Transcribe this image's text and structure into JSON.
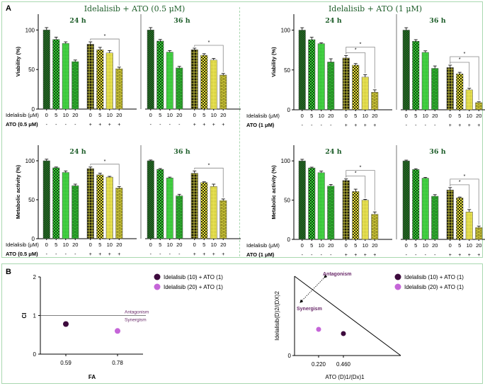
{
  "panel_a": {
    "letter": "A",
    "x_row_label": "Idelalisib (μM)",
    "doses": [
      "0",
      "5",
      "10",
      "20",
      "0",
      "5",
      "10",
      "20"
    ],
    "time_labels": [
      "24 h",
      "36 h"
    ],
    "significance_mark": "*"
  },
  "panel_b": {
    "letter": "B",
    "legend": [
      {
        "label": "Idelalisib (10) + ATO (1)",
        "color": "#3d0a3d"
      },
      {
        "label": "Idelalisib (20) + ATO (1)",
        "color": "#c565d8"
      }
    ]
  },
  "colors": {
    "dark_green": "#1f5f1f",
    "mid_green": "#2fb52f",
    "light_green": "#4ad64a",
    "bright_green": "#34c034",
    "dark_yellow": "#3a3a10",
    "yellow": "#e6e040",
    "title_green": "#1e5e2a",
    "purple_text": "#6a2a6a",
    "panel_border": "#a9d8b0"
  },
  "chart_data": [
    {
      "type": "bar",
      "id": "viability-ato05",
      "title": "Idelalisib + ATO (0.5 μM)",
      "ylabel": "Viability (%)",
      "ylim": [
        0,
        120
      ],
      "yticks": [
        0,
        50,
        100
      ],
      "ato_label": "ATO (0.5 μM)",
      "categories": [
        "0",
        "5",
        "10",
        "20",
        "0",
        "5",
        "10",
        "20"
      ],
      "ato": [
        "-",
        "-",
        "-",
        "-",
        "+",
        "+",
        "+",
        "+"
      ],
      "groups": [
        {
          "time": "24 h",
          "values": [
            100,
            88,
            83,
            60,
            82,
            75,
            71,
            51
          ],
          "errors": [
            3,
            3,
            2,
            2,
            3,
            3,
            3,
            2
          ],
          "brackets": [
            [
              4,
              7
            ]
          ]
        },
        {
          "time": "36 h",
          "values": [
            100,
            86,
            72,
            52,
            75,
            68,
            62,
            43
          ],
          "errors": [
            3,
            2,
            2,
            2,
            2,
            2,
            2,
            2
          ],
          "brackets": [
            [
              4,
              7
            ]
          ]
        }
      ]
    },
    {
      "type": "bar",
      "id": "viability-ato1",
      "title": "Idelalisib + ATO (1 μM)",
      "ylabel": "Viability (%)",
      "ylim": [
        0,
        120
      ],
      "yticks": [
        0,
        50,
        100
      ],
      "ato_label": "ATO (1 μM)",
      "categories": [
        "0",
        "5",
        "10",
        "20",
        "0",
        "5",
        "10",
        "20"
      ],
      "ato": [
        "-",
        "-",
        "-",
        "-",
        "+",
        "+",
        "+",
        "+"
      ],
      "groups": [
        {
          "time": "24 h",
          "values": [
            100,
            88,
            83,
            60,
            65,
            56,
            41,
            22
          ],
          "errors": [
            3,
            3,
            1,
            4,
            3,
            2,
            3,
            3
          ],
          "brackets": [
            [
              4,
              6
            ],
            [
              4,
              7
            ]
          ]
        },
        {
          "time": "36 h",
          "values": [
            100,
            86,
            72,
            52,
            53,
            45,
            25,
            9
          ],
          "errors": [
            3,
            2,
            2,
            3,
            3,
            2,
            2,
            1
          ],
          "brackets": [
            [
              4,
              6
            ],
            [
              4,
              7
            ]
          ]
        }
      ]
    },
    {
      "type": "bar",
      "id": "metabolic-ato05",
      "title": "",
      "ylabel": "Metabolic activity (%)",
      "ylim": [
        0,
        120
      ],
      "yticks": [
        0,
        50,
        100
      ],
      "ato_label": "ATO (0.5 μM)",
      "categories": [
        "0",
        "5",
        "10",
        "20",
        "0",
        "5",
        "10",
        "20"
      ],
      "ato": [
        "-",
        "-",
        "-",
        "-",
        "+",
        "+",
        "+",
        "+"
      ],
      "groups": [
        {
          "time": "24 h",
          "values": [
            100,
            91,
            85,
            68,
            90,
            82,
            79,
            65
          ],
          "errors": [
            2,
            1,
            2,
            2,
            2,
            2,
            1,
            2
          ],
          "brackets": [
            [
              4,
              7
            ]
          ]
        },
        {
          "time": "36 h",
          "values": [
            100,
            89,
            78,
            55,
            84,
            72,
            67,
            49
          ],
          "errors": [
            1,
            1,
            1,
            2,
            3,
            1,
            3,
            2
          ],
          "brackets": [
            [
              4,
              7
            ]
          ]
        }
      ]
    },
    {
      "type": "bar",
      "id": "metabolic-ato1",
      "title": "",
      "ylabel": "Metabolic activity (%)",
      "ylim": [
        0,
        120
      ],
      "yticks": [
        0,
        50,
        100
      ],
      "ato_label": "ATO (1 μM)",
      "categories": [
        "0",
        "5",
        "10",
        "20",
        "0",
        "5",
        "10",
        "20"
      ],
      "ato": [
        "-",
        "-",
        "-",
        "-",
        "+",
        "+",
        "+",
        "+"
      ],
      "groups": [
        {
          "time": "24 h",
          "values": [
            100,
            91,
            85,
            68,
            75,
            61,
            50,
            32
          ],
          "errors": [
            2,
            1,
            2,
            2,
            2,
            3,
            1,
            3
          ],
          "brackets": [
            [
              4,
              6
            ],
            [
              4,
              7
            ]
          ]
        },
        {
          "time": "36 h",
          "values": [
            100,
            89,
            78,
            55,
            63,
            53,
            35,
            15
          ],
          "errors": [
            1,
            1,
            1,
            2,
            3,
            1,
            3,
            2
          ],
          "brackets": [
            [
              4,
              6
            ],
            [
              4,
              7
            ]
          ]
        }
      ]
    },
    {
      "type": "scatter",
      "id": "ci-fa-plot",
      "xlabel": "FA",
      "ylabel": "CI",
      "ylim": [
        0,
        2
      ],
      "yticks": [
        0,
        1,
        2
      ],
      "xtick_labels": [
        "0.59",
        "0.78"
      ],
      "reference_line": 1,
      "annotations": [
        "Antagonism",
        "Synergism"
      ],
      "series": [
        {
          "name": "Idelalisib (10) + ATO (1)",
          "x": 0.59,
          "y": 0.78
        },
        {
          "name": "Idelalisib (20) + ATO (1)",
          "x": 0.78,
          "y": 0.6
        }
      ]
    },
    {
      "type": "scatter",
      "id": "isobologram",
      "xlabel": "ATO (D)1/(Dx)1",
      "ylabel": "Idelalisib(D)2/(DX)2",
      "yticks": [
        0
      ],
      "xtick_labels": [
        "0.220",
        "0.460"
      ],
      "annotations": [
        "Antagonism",
        "Synergism"
      ],
      "series": [
        {
          "name": "Idelalisib (10) + ATO (1)",
          "x": 0.46,
          "y": 0.2
        },
        {
          "name": "Idelalisib (20) + ATO (1)",
          "x": 0.22,
          "y": 0.25
        }
      ]
    }
  ]
}
